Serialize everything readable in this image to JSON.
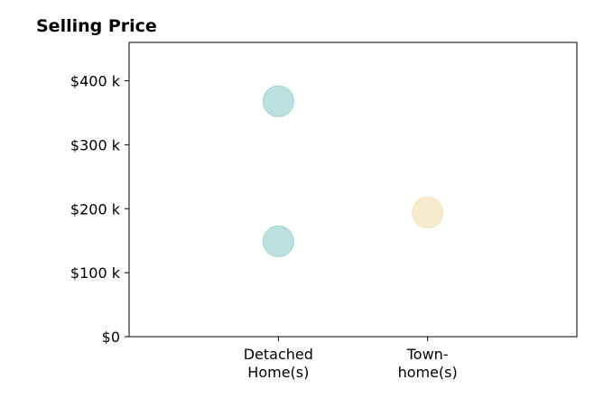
{
  "chart_data": {
    "type": "scatter",
    "title": "Selling Price",
    "xlabel": "",
    "ylabel": "",
    "categories": [
      [
        "Detached",
        "Home(s)"
      ],
      [
        "Town-",
        "home(s)"
      ]
    ],
    "x_range": [
      -1,
      2
    ],
    "ylim": [
      0,
      460000
    ],
    "y_ticks": [
      {
        "value": 0,
        "label": "$0"
      },
      {
        "value": 100000,
        "label": "$100 k"
      },
      {
        "value": 200000,
        "label": "$200 k"
      },
      {
        "value": 300000,
        "label": "$300 k"
      },
      {
        "value": 400000,
        "label": "$400 k"
      }
    ],
    "points": [
      {
        "category": 0,
        "value": 368000,
        "color": "#a6d8d4"
      },
      {
        "category": 0,
        "value": 149000,
        "color": "#a6d8d4"
      },
      {
        "category": 1,
        "value": 194000,
        "color": "#f6e4bc"
      }
    ],
    "marker_opacity": 0.75,
    "grid": false,
    "legend": "none"
  }
}
